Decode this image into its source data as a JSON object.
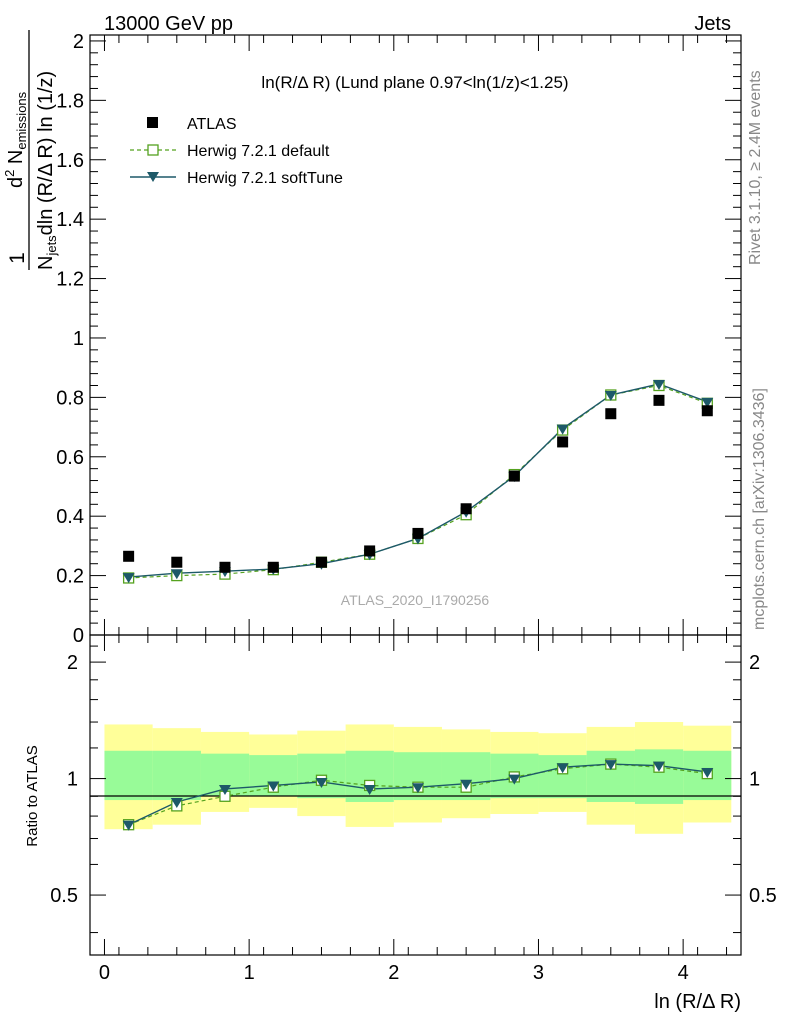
{
  "header": {
    "left": "13000 GeV pp",
    "right": "Jets"
  },
  "side": {
    "rivet": "Rivet 3.1.10, ≥ 2.4M events",
    "mcplots": "mcplots.cern.ch [arXiv:1306.3436]"
  },
  "watermark": "ATLAS_2020_I1790256",
  "chart_data": {
    "type": "line",
    "title": "ln(R/Δ R) (Lund plane 0.97<ln(1/z)<1.25)",
    "xlabel": "ln (R/Δ R)",
    "ylabel_top": "1/N_jets dN_emissions / dln(R/ΔR) dln(1/z)",
    "ylabel_ratio": "Ratio to ATLAS",
    "xlim": [
      -0.1,
      4.4
    ],
    "ylim": [
      0,
      2.02
    ],
    "ratio_ylim": [
      0.35,
      2.35
    ],
    "x_ticks": [
      "0",
      "1",
      "2",
      "3",
      "4"
    ],
    "y_ticks": [
      "0",
      "0.2",
      "0.4",
      "0.6",
      "0.8",
      "1",
      "1.2",
      "1.4",
      "1.6",
      "1.8",
      "2"
    ],
    "ratio_ticks": [
      "0.5",
      "1",
      "2"
    ],
    "legend": [
      "ATLAS",
      "Herwig 7.2.1 default",
      "Herwig 7.2.1 softTune"
    ],
    "bin_edges": [
      0.0,
      0.333,
      0.667,
      1.0,
      1.333,
      1.667,
      2.0,
      2.333,
      2.667,
      3.0,
      3.333,
      3.667,
      4.0,
      4.333
    ],
    "x": [
      0.167,
      0.5,
      0.833,
      1.167,
      1.5,
      1.833,
      2.167,
      2.5,
      2.833,
      3.167,
      3.5,
      3.833,
      4.167
    ],
    "series": [
      {
        "name": "ATLAS",
        "values": [
          0.265,
          0.245,
          0.228,
          0.228,
          0.245,
          0.283,
          0.342,
          0.425,
          0.535,
          0.65,
          0.745,
          0.79,
          0.755
        ]
      },
      {
        "name": "Herwig 7.2.1 default",
        "values": [
          0.192,
          0.2,
          0.205,
          0.22,
          0.245,
          0.272,
          0.325,
          0.405,
          0.54,
          0.69,
          0.808,
          0.84,
          0.78
        ]
      },
      {
        "name": "Herwig 7.2.1 softTune",
        "values": [
          0.195,
          0.208,
          0.215,
          0.222,
          0.24,
          0.272,
          0.325,
          0.415,
          0.535,
          0.695,
          0.808,
          0.845,
          0.785
        ]
      }
    ],
    "ratio_series": [
      {
        "name": "Herwig 7.2.1 default",
        "values": [
          0.76,
          0.85,
          0.9,
          0.95,
          0.99,
          0.96,
          0.95,
          0.95,
          1.01,
          1.06,
          1.09,
          1.07,
          1.03
        ]
      },
      {
        "name": "Herwig 7.2.1 softTune",
        "values": [
          0.76,
          0.87,
          0.94,
          0.96,
          0.98,
          0.94,
          0.95,
          0.97,
          1.0,
          1.07,
          1.09,
          1.08,
          1.04
        ]
      }
    ],
    "ratio_bands": {
      "inner_up": [
        1.18,
        1.18,
        1.16,
        1.15,
        1.16,
        1.18,
        1.17,
        1.17,
        1.16,
        1.15,
        1.18,
        1.19,
        1.18
      ],
      "inner_down": [
        0.88,
        0.88,
        0.9,
        0.9,
        0.89,
        0.87,
        0.88,
        0.88,
        0.89,
        0.89,
        0.87,
        0.86,
        0.88
      ],
      "outer_up": [
        1.38,
        1.35,
        1.32,
        1.3,
        1.33,
        1.38,
        1.36,
        1.34,
        1.32,
        1.31,
        1.36,
        1.4,
        1.37
      ],
      "outer_down": [
        0.74,
        0.76,
        0.82,
        0.84,
        0.8,
        0.75,
        0.77,
        0.79,
        0.81,
        0.82,
        0.76,
        0.72,
        0.77
      ]
    },
    "colors": {
      "data": "#000000",
      "default": "#55a21f",
      "softtune": "#1d5968",
      "band_inner": "#98fb98",
      "band_outer": "#ffff99",
      "side_text": "#888888",
      "watermark": "#aaaaaa"
    }
  }
}
